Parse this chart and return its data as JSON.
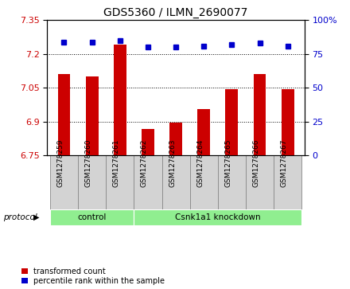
{
  "title": "GDS5360 / ILMN_2690077",
  "samples": [
    "GSM1278259",
    "GSM1278260",
    "GSM1278261",
    "GSM1278262",
    "GSM1278263",
    "GSM1278264",
    "GSM1278265",
    "GSM1278266",
    "GSM1278267"
  ],
  "transformed_counts": [
    7.11,
    7.1,
    7.24,
    6.865,
    6.895,
    6.955,
    7.045,
    7.11,
    7.045
  ],
  "percentile_ranks": [
    84,
    84,
    85,
    80,
    80,
    81,
    82,
    83,
    81
  ],
  "ylim_left": [
    6.75,
    7.35
  ],
  "ylim_right": [
    0,
    100
  ],
  "yticks_left": [
    6.75,
    6.9,
    7.05,
    7.2,
    7.35
  ],
  "yticks_right": [
    0,
    25,
    50,
    75,
    100
  ],
  "bar_color": "#cc0000",
  "dot_color": "#0000cc",
  "protocol_groups": [
    {
      "label": "control",
      "indices": [
        0,
        1,
        2
      ]
    },
    {
      "label": "Csnk1a1 knockdown",
      "indices": [
        3,
        4,
        5,
        6,
        7,
        8
      ]
    }
  ],
  "legend_bar_label": "transformed count",
  "legend_dot_label": "percentile rank within the sample",
  "protocol_color": "#90ee90",
  "tickbox_color": "#d3d3d3",
  "tickbox_edge_color": "#888888"
}
